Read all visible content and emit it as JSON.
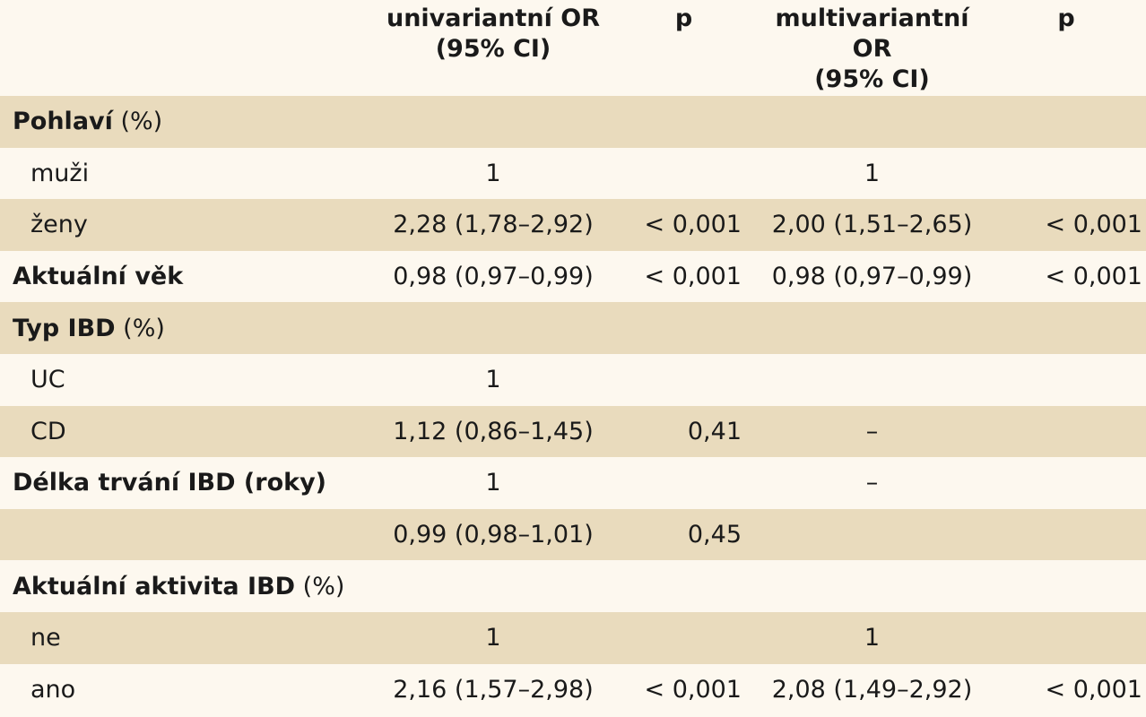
{
  "header": {
    "col1_line1": "univariantní OR",
    "col1_line2": "(95% CI)",
    "col2": "p",
    "col3_line1": "multivariantní OR",
    "col3_line2": "(95% CI)",
    "col4": "p"
  },
  "rows": [
    {
      "label_bold": "Pohlaví",
      "label_rest": " (%)",
      "uni": "",
      "p1": "",
      "multi": "",
      "p2": ""
    },
    {
      "label": "muži",
      "uni": "1",
      "p1": "",
      "multi": "1",
      "p2": ""
    },
    {
      "label": "ženy",
      "uni": "2,28 (1,78–2,92)",
      "p1": "< 0,001",
      "multi": "2,00 (1,51–2,65)",
      "p2": "< 0,001"
    },
    {
      "label_bold": "Aktuální věk",
      "label_rest": "",
      "uni": "0,98 (0,97–0,99)",
      "p1": "< 0,001",
      "multi": "0,98 (0,97–0,99)",
      "p2": "< 0,001"
    },
    {
      "label_bold": "Typ IBD",
      "label_rest": " (%)",
      "uni": "",
      "p1": "",
      "multi": "",
      "p2": ""
    },
    {
      "label": "UC",
      "uni": "1",
      "p1": "",
      "multi": "",
      "p2": ""
    },
    {
      "label": "CD",
      "uni": "1,12 (0,86–1,45)",
      "p1": "0,41",
      "multi": "–",
      "p2": ""
    },
    {
      "label_bold": "Délka trvání IBD (roky)",
      "label_rest": "",
      "uni": "1",
      "p1": "",
      "multi": "–",
      "p2": ""
    },
    {
      "label": "",
      "uni": "0,99 (0,98–1,01)",
      "p1": "0,45",
      "multi": "",
      "p2": ""
    },
    {
      "label_bold": "Aktuální aktivita IBD",
      "label_rest": " (%)",
      "uni": "",
      "p1": "",
      "multi": "",
      "p2": ""
    },
    {
      "label": "ne",
      "uni": "1",
      "p1": "",
      "multi": "1",
      "p2": ""
    },
    {
      "label": "ano",
      "uni": "2,16 (1,57–2,98)",
      "p1": "< 0,001",
      "multi": "2,08 (1,49–2,92)",
      "p2": "< 0,001"
    }
  ]
}
